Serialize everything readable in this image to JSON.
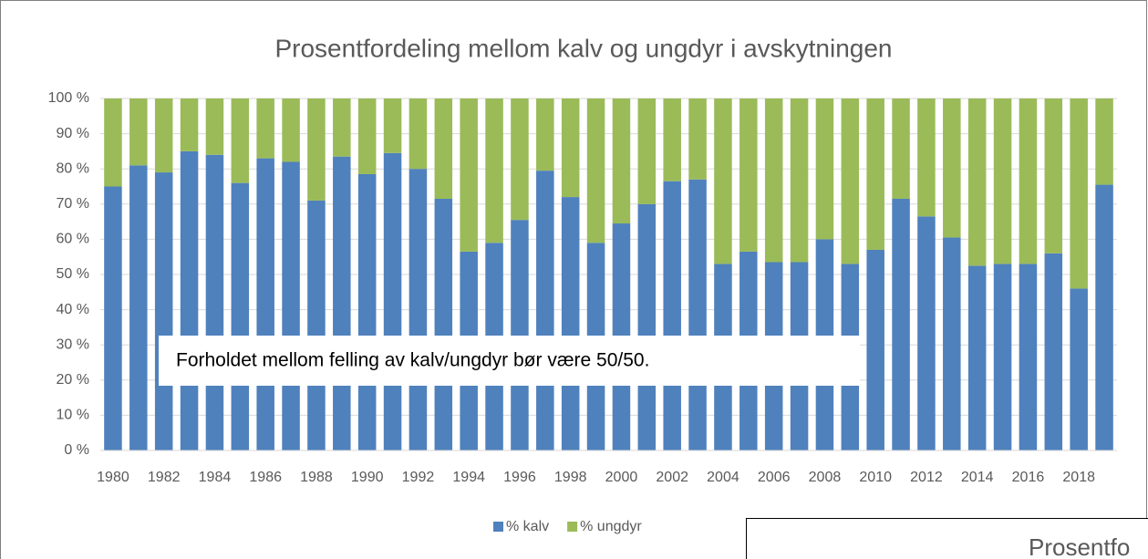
{
  "chart_data": {
    "type": "stacked_bar",
    "title": "Prosentfordeling mellom kalv og ungdyr i avskytningen",
    "categories": [
      "1980",
      null,
      "1982",
      null,
      "1984",
      null,
      "1986",
      null,
      "1988",
      null,
      "1990",
      null,
      "1992",
      null,
      "1994",
      null,
      "1996",
      null,
      "1998",
      null,
      "2000",
      null,
      "2002",
      null,
      "2004",
      null,
      "2006",
      null,
      "2008",
      null,
      "2010",
      null,
      "2012",
      null,
      "2014",
      null,
      "2016",
      null,
      "2018",
      null
    ],
    "series": [
      {
        "name": "% kalv",
        "color": "#4f81bd",
        "values": [
          75,
          81,
          79,
          85,
          84,
          76,
          83,
          82,
          71,
          83.5,
          78.5,
          84.5,
          80,
          71.5,
          56.5,
          59,
          65.5,
          79.5,
          72,
          59,
          64.5,
          70,
          76.5,
          77,
          53,
          56.5,
          53.5,
          53.5,
          60,
          53,
          57,
          71.5,
          66.5,
          60.5,
          52.5,
          53,
          53,
          56,
          46,
          75.5
        ]
      },
      {
        "name": "% ungdyr",
        "color": "#9bbb59",
        "values": [
          25,
          19,
          21,
          15,
          16,
          24,
          17,
          18,
          29,
          16.5,
          21.5,
          15.5,
          20,
          28.5,
          43.5,
          41,
          34.5,
          20.5,
          28,
          41,
          35.5,
          30,
          23.5,
          23,
          47,
          43.5,
          46.5,
          46.5,
          40,
          47,
          43,
          28.5,
          33.5,
          39.5,
          47.5,
          47,
          47,
          44,
          54,
          24.5
        ]
      }
    ],
    "ylim": [
      0,
      100
    ],
    "yticks": [
      {
        "value": 0,
        "label": "0 %"
      },
      {
        "value": 10,
        "label": "10 %"
      },
      {
        "value": 20,
        "label": "20 %"
      },
      {
        "value": 30,
        "label": "30 %"
      },
      {
        "value": 40,
        "label": "40 %"
      },
      {
        "value": 50,
        "label": "50 %"
      },
      {
        "value": 60,
        "label": "60 %"
      },
      {
        "value": 70,
        "label": "70 %"
      },
      {
        "value": 80,
        "label": "80 %"
      },
      {
        "value": 90,
        "label": "90 %"
      },
      {
        "value": 100,
        "label": "100 %"
      }
    ],
    "grid": true,
    "legend": "bottom",
    "annotation": "Forholdet mellom felling av kalv/ungdyr bør være 50/50."
  },
  "overlay_title": "Prosentfo"
}
